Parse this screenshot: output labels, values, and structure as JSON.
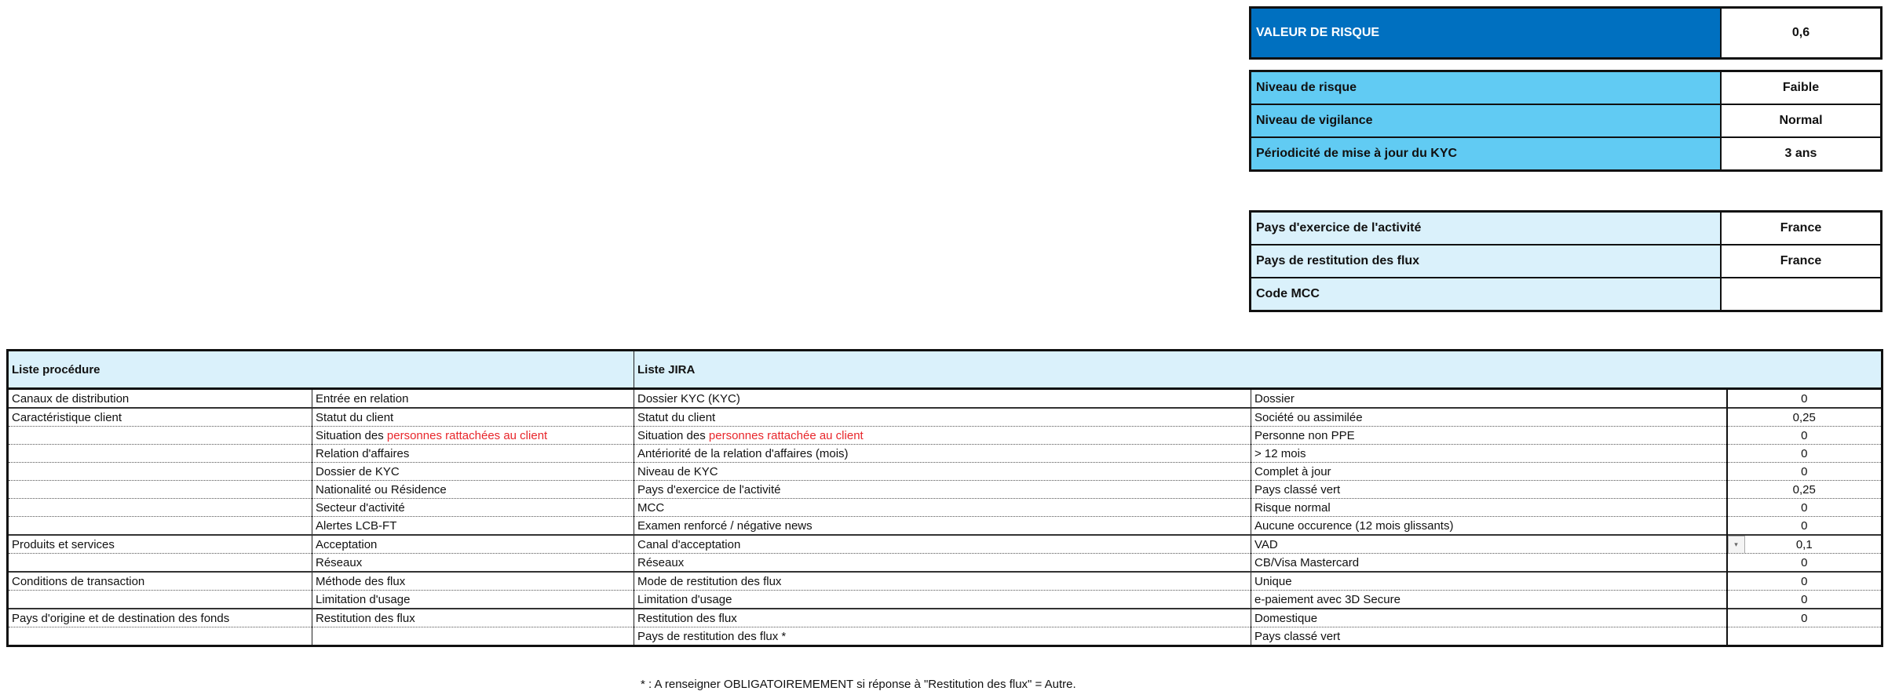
{
  "risk_value": {
    "label": "VALEUR DE RISQUE",
    "value": "0,6"
  },
  "risk_summary": [
    {
      "label": "Niveau de risque",
      "value": "Faible"
    },
    {
      "label": "Niveau de vigilance",
      "value": "Normal"
    },
    {
      "label": "Périodicité de mise à jour du KYC",
      "value": "3 ans"
    }
  ],
  "country_info": [
    {
      "label": "Pays d'exercice de l'activité",
      "value": "France"
    },
    {
      "label": "Pays de restitution des flux",
      "value": "France"
    },
    {
      "label": "Code MCC",
      "value": ""
    }
  ],
  "table": {
    "header_procedure": "Liste procédure",
    "header_jira": "Liste JIRA",
    "rows": [
      {
        "cat": "Canaux de distribution",
        "proc": "Entrée en relation",
        "jira": "Dossier KYC (KYC)",
        "answer": "Dossier",
        "score": "0"
      },
      {
        "cat": "Caractéristique client",
        "proc": "Statut du client",
        "jira": "Statut du client",
        "answer": "Société ou assimilée",
        "score": "0,25"
      },
      {
        "cat": "",
        "proc": "Situation des ",
        "proc_red": "personnes rattachées au client",
        "jira": "Situation des ",
        "jira_red": "personnes rattachée au client",
        "answer": "Personne non PPE",
        "score": "0"
      },
      {
        "cat": "",
        "proc": "Relation d'affaires",
        "jira": "Antériorité de la relation d'affaires (mois)",
        "answer": "> 12 mois",
        "score": "0"
      },
      {
        "cat": "",
        "proc": "Dossier de KYC",
        "jira": "Niveau de KYC",
        "answer": "Complet à jour",
        "score": "0"
      },
      {
        "cat": "",
        "proc": "Nationalité ou Résidence",
        "jira": "Pays d'exercice de l'activité",
        "answer": "Pays classé vert",
        "score": "0,25"
      },
      {
        "cat": "",
        "proc": "Secteur d'activité",
        "jira": "MCC",
        "answer": "Risque normal",
        "score": "0"
      },
      {
        "cat": "",
        "proc": "Alertes LCB-FT",
        "jira": "Examen renforcé / négative news",
        "answer": "Aucune occurence (12 mois glissants)",
        "score": "0"
      },
      {
        "cat": "Produits et services",
        "proc": "Acceptation",
        "jira": "Canal d'acceptation",
        "answer": "VAD",
        "score": "0,1"
      },
      {
        "cat": "",
        "proc": "Réseaux",
        "jira": "Réseaux",
        "answer": "CB/Visa Mastercard",
        "score": "0"
      },
      {
        "cat": "Conditions de transaction",
        "proc": "Méthode des flux",
        "jira": "Mode de restitution des flux",
        "answer": "Unique",
        "score": "0"
      },
      {
        "cat": "",
        "proc": "Limitation d'usage",
        "jira": "Limitation d'usage",
        "answer": "e-paiement avec 3D Secure",
        "score": "0"
      },
      {
        "cat": "Pays d'origine et de destination des fonds",
        "proc": "Restitution des flux",
        "jira": "Restitution des flux",
        "answer": "Domestique",
        "score": "0"
      },
      {
        "cat": "",
        "proc": "",
        "jira": "Pays de restitution des flux *",
        "answer": "Pays classé vert",
        "score": ""
      }
    ]
  },
  "footnote": "* : A renseigner OBLIGATOIREMEMENT si réponse à \"Restitution des flux\" = Autre.",
  "colors": {
    "risk_header": "#0070c0",
    "summary_label": "#61cbf3",
    "info_label": "#daf1fb",
    "highlight_text": "#e8262b"
  }
}
